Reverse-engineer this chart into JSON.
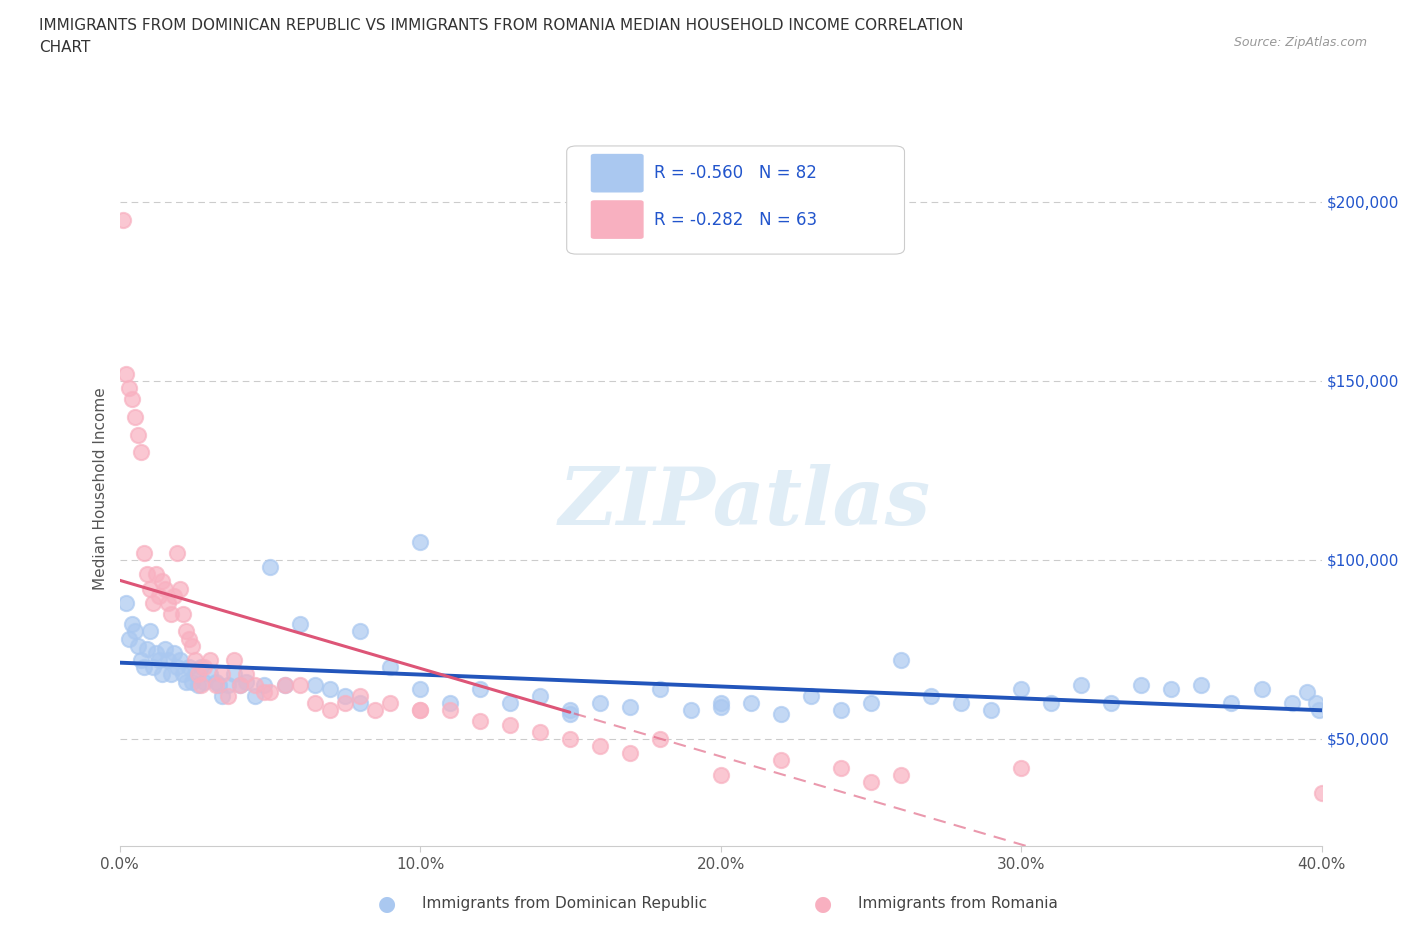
{
  "title_line1": "IMMIGRANTS FROM DOMINICAN REPUBLIC VS IMMIGRANTS FROM ROMANIA MEDIAN HOUSEHOLD INCOME CORRELATION",
  "title_line2": "CHART",
  "source": "Source: ZipAtlas.com",
  "ylabel": "Median Household Income",
  "xmin": 0.0,
  "xmax": 0.4,
  "ymin": 20000,
  "ymax": 220000,
  "yticks": [
    50000,
    100000,
    150000,
    200000
  ],
  "ytick_labels": [
    "$50,000",
    "$100,000",
    "$150,000",
    "$200,000"
  ],
  "xticks": [
    0.0,
    0.1,
    0.2,
    0.3,
    0.4
  ],
  "xtick_labels": [
    "0.0%",
    "10.0%",
    "20.0%",
    "30.0%",
    "40.0%"
  ],
  "series_blue_label": "Immigrants from Dominican Republic",
  "series_pink_label": "Immigrants from Romania",
  "blue_color": "#aac8f0",
  "pink_color": "#f8b0c0",
  "blue_line_color": "#2255bb",
  "pink_line_color": "#dd5577",
  "R_blue": -0.56,
  "N_blue": 82,
  "R_pink": -0.282,
  "N_pink": 63,
  "legend_text_color": "#2255cc",
  "watermark": "ZIPatlas",
  "blue_intercept": 85000,
  "blue_slope": -100000,
  "pink_intercept": 100000,
  "pink_slope": -220000,
  "blue_x": [
    0.002,
    0.003,
    0.004,
    0.005,
    0.006,
    0.007,
    0.008,
    0.009,
    0.01,
    0.011,
    0.012,
    0.013,
    0.014,
    0.015,
    0.016,
    0.017,
    0.018,
    0.019,
    0.02,
    0.021,
    0.022,
    0.023,
    0.024,
    0.025,
    0.026,
    0.027,
    0.028,
    0.03,
    0.032,
    0.033,
    0.034,
    0.036,
    0.038,
    0.04,
    0.042,
    0.045,
    0.048,
    0.05,
    0.055,
    0.06,
    0.065,
    0.07,
    0.075,
    0.08,
    0.09,
    0.1,
    0.11,
    0.12,
    0.13,
    0.14,
    0.15,
    0.16,
    0.17,
    0.18,
    0.19,
    0.2,
    0.21,
    0.22,
    0.23,
    0.24,
    0.25,
    0.26,
    0.27,
    0.28,
    0.29,
    0.3,
    0.31,
    0.32,
    0.33,
    0.34,
    0.35,
    0.36,
    0.37,
    0.38,
    0.39,
    0.395,
    0.398,
    0.399,
    0.15,
    0.2,
    0.08,
    0.1
  ],
  "blue_y": [
    88000,
    78000,
    82000,
    80000,
    76000,
    72000,
    70000,
    75000,
    80000,
    70000,
    74000,
    72000,
    68000,
    75000,
    72000,
    68000,
    74000,
    70000,
    72000,
    68000,
    66000,
    70000,
    66000,
    68000,
    65000,
    70000,
    66000,
    68000,
    66000,
    65000,
    62000,
    65000,
    68000,
    65000,
    66000,
    62000,
    65000,
    98000,
    65000,
    82000,
    65000,
    64000,
    62000,
    60000,
    70000,
    64000,
    60000,
    64000,
    60000,
    62000,
    58000,
    60000,
    59000,
    64000,
    58000,
    60000,
    60000,
    57000,
    62000,
    58000,
    60000,
    72000,
    62000,
    60000,
    58000,
    64000,
    60000,
    65000,
    60000,
    65000,
    64000,
    65000,
    60000,
    64000,
    60000,
    63000,
    60000,
    58000,
    57000,
    59000,
    80000,
    105000
  ],
  "pink_x": [
    0.001,
    0.002,
    0.003,
    0.004,
    0.005,
    0.006,
    0.007,
    0.008,
    0.009,
    0.01,
    0.011,
    0.012,
    0.013,
    0.014,
    0.015,
    0.016,
    0.017,
    0.018,
    0.019,
    0.02,
    0.021,
    0.022,
    0.023,
    0.024,
    0.025,
    0.026,
    0.027,
    0.028,
    0.03,
    0.032,
    0.034,
    0.036,
    0.038,
    0.04,
    0.042,
    0.045,
    0.048,
    0.05,
    0.055,
    0.06,
    0.065,
    0.07,
    0.075,
    0.08,
    0.085,
    0.09,
    0.1,
    0.11,
    0.12,
    0.13,
    0.14,
    0.15,
    0.16,
    0.17,
    0.18,
    0.2,
    0.22,
    0.24,
    0.26,
    0.3,
    0.4,
    0.25,
    0.1
  ],
  "pink_y": [
    195000,
    152000,
    148000,
    145000,
    140000,
    135000,
    130000,
    102000,
    96000,
    92000,
    88000,
    96000,
    90000,
    94000,
    92000,
    88000,
    85000,
    90000,
    102000,
    92000,
    85000,
    80000,
    78000,
    76000,
    72000,
    68000,
    65000,
    70000,
    72000,
    65000,
    68000,
    62000,
    72000,
    65000,
    68000,
    65000,
    63000,
    63000,
    65000,
    65000,
    60000,
    58000,
    60000,
    62000,
    58000,
    60000,
    58000,
    58000,
    55000,
    54000,
    52000,
    50000,
    48000,
    46000,
    50000,
    40000,
    44000,
    42000,
    40000,
    42000,
    35000,
    38000,
    58000
  ]
}
